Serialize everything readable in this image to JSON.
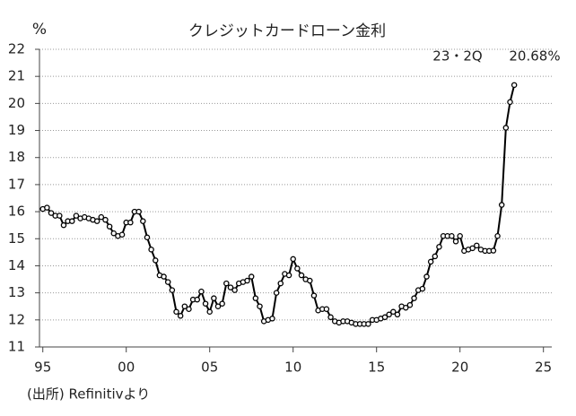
{
  "chart_data": {
    "type": "line",
    "title": "クレジットカードローン金利",
    "y_label": "%",
    "annotations": [
      "23・2Q",
      "20.68%"
    ],
    "source": "(出所) Refinitivより",
    "x": [
      1995,
      1995.25,
      1995.5,
      1995.75,
      1996,
      1996.25,
      1996.5,
      1996.75,
      1997,
      1997.25,
      1997.5,
      1997.75,
      1998,
      1998.25,
      1998.5,
      1998.75,
      1999,
      1999.25,
      1999.5,
      1999.75,
      2000,
      2000.25,
      2000.5,
      2000.75,
      2001,
      2001.25,
      2001.5,
      2001.75,
      2002,
      2002.25,
      2002.5,
      2002.75,
      2003,
      2003.25,
      2003.5,
      2003.75,
      2004,
      2004.25,
      2004.5,
      2004.75,
      2005,
      2005.25,
      2005.5,
      2005.75,
      2006,
      2006.25,
      2006.5,
      2006.75,
      2007,
      2007.25,
      2007.5,
      2007.75,
      2008,
      2008.25,
      2008.5,
      2008.75,
      2009,
      2009.25,
      2009.5,
      2009.75,
      2010,
      2010.25,
      2010.5,
      2010.75,
      2011,
      2011.25,
      2011.5,
      2011.75,
      2012,
      2012.25,
      2012.5,
      2012.75,
      2013,
      2013.25,
      2013.5,
      2013.75,
      2014,
      2014.25,
      2014.5,
      2014.75,
      2015,
      2015.25,
      2015.5,
      2015.75,
      2016,
      2016.25,
      2016.5,
      2016.75,
      2017,
      2017.25,
      2017.5,
      2017.75,
      2018,
      2018.25,
      2018.5,
      2018.75,
      2019,
      2019.25,
      2019.5,
      2019.75,
      2020,
      2020.25,
      2020.5,
      2020.75,
      2021,
      2021.25,
      2021.5,
      2021.75,
      2022,
      2022.25,
      2022.5,
      2022.75,
      2023,
      2023.25
    ],
    "series": [
      {
        "color": "#000000",
        "values": [
          16.1,
          16.15,
          15.95,
          15.85,
          15.85,
          15.5,
          15.65,
          15.65,
          15.85,
          15.75,
          15.8,
          15.75,
          15.7,
          15.65,
          15.8,
          15.7,
          15.45,
          15.2,
          15.1,
          15.15,
          15.6,
          15.6,
          16.0,
          16.0,
          15.65,
          15.05,
          14.6,
          14.2,
          13.65,
          13.6,
          13.4,
          13.1,
          12.3,
          12.15,
          12.5,
          12.4,
          12.75,
          12.75,
          13.05,
          12.6,
          12.3,
          12.8,
          12.5,
          12.6,
          13.35,
          13.2,
          13.1,
          13.35,
          13.4,
          13.45,
          13.6,
          12.8,
          12.5,
          11.95,
          12.0,
          12.05,
          13.0,
          13.35,
          13.7,
          13.65,
          14.25,
          13.9,
          13.65,
          13.5,
          13.45,
          12.9,
          12.35,
          12.4,
          12.4,
          12.1,
          11.95,
          11.9,
          11.95,
          11.95,
          11.9,
          11.85,
          11.85,
          11.85,
          11.85,
          12.0,
          12.0,
          12.05,
          12.1,
          12.2,
          12.3,
          12.2,
          12.5,
          12.45,
          12.55,
          12.8,
          13.1,
          13.15,
          13.6,
          14.15,
          14.35,
          14.7,
          15.1,
          15.1,
          15.1,
          14.9,
          15.1,
          14.55,
          14.6,
          14.65,
          14.75,
          14.6,
          14.55,
          14.55,
          14.56,
          15.1,
          16.25,
          19.1,
          20.05,
          20.68
        ]
      }
    ],
    "xlim": [
      1994.8,
      2025.5
    ],
    "xticks": [
      {
        "value": 1995,
        "label": "95"
      },
      {
        "value": 2000,
        "label": "00"
      },
      {
        "value": 2005,
        "label": "05"
      },
      {
        "value": 2010,
        "label": "10"
      },
      {
        "value": 2015,
        "label": "15"
      },
      {
        "value": 2020,
        "label": "20"
      },
      {
        "value": 2025,
        "label": "25"
      }
    ],
    "ylim": [
      11,
      22
    ],
    "yticks": [
      11,
      12,
      13,
      14,
      15,
      16,
      17,
      18,
      19,
      20,
      21,
      22
    ],
    "grid": true
  }
}
